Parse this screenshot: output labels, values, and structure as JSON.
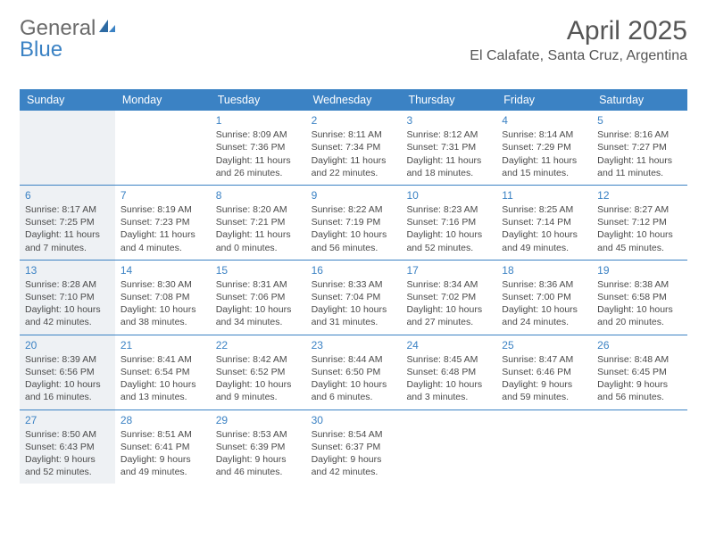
{
  "logo": {
    "text1": "General",
    "text2": "Blue"
  },
  "title": "April 2025",
  "location": "El Calafate, Santa Cruz, Argentina",
  "colors": {
    "header_bg": "#3b82c4",
    "header_text": "#ffffff",
    "day_num": "#3b82c4",
    "body_text": "#4a4a4a",
    "sunday_bg": "#eef1f4",
    "divider": "#3b82c4"
  },
  "weekdays": [
    "Sunday",
    "Monday",
    "Tuesday",
    "Wednesday",
    "Thursday",
    "Friday",
    "Saturday"
  ],
  "weeks": [
    [
      {
        "day": "",
        "sunday": true,
        "empty": true
      },
      {
        "day": "",
        "empty": true
      },
      {
        "day": "1",
        "sunrise": "Sunrise: 8:09 AM",
        "sunset": "Sunset: 7:36 PM",
        "daylight": "Daylight: 11 hours and 26 minutes."
      },
      {
        "day": "2",
        "sunrise": "Sunrise: 8:11 AM",
        "sunset": "Sunset: 7:34 PM",
        "daylight": "Daylight: 11 hours and 22 minutes."
      },
      {
        "day": "3",
        "sunrise": "Sunrise: 8:12 AM",
        "sunset": "Sunset: 7:31 PM",
        "daylight": "Daylight: 11 hours and 18 minutes."
      },
      {
        "day": "4",
        "sunrise": "Sunrise: 8:14 AM",
        "sunset": "Sunset: 7:29 PM",
        "daylight": "Daylight: 11 hours and 15 minutes."
      },
      {
        "day": "5",
        "sunrise": "Sunrise: 8:16 AM",
        "sunset": "Sunset: 7:27 PM",
        "daylight": "Daylight: 11 hours and 11 minutes."
      }
    ],
    [
      {
        "day": "6",
        "sunday": true,
        "sunrise": "Sunrise: 8:17 AM",
        "sunset": "Sunset: 7:25 PM",
        "daylight": "Daylight: 11 hours and 7 minutes."
      },
      {
        "day": "7",
        "sunrise": "Sunrise: 8:19 AM",
        "sunset": "Sunset: 7:23 PM",
        "daylight": "Daylight: 11 hours and 4 minutes."
      },
      {
        "day": "8",
        "sunrise": "Sunrise: 8:20 AM",
        "sunset": "Sunset: 7:21 PM",
        "daylight": "Daylight: 11 hours and 0 minutes."
      },
      {
        "day": "9",
        "sunrise": "Sunrise: 8:22 AM",
        "sunset": "Sunset: 7:19 PM",
        "daylight": "Daylight: 10 hours and 56 minutes."
      },
      {
        "day": "10",
        "sunrise": "Sunrise: 8:23 AM",
        "sunset": "Sunset: 7:16 PM",
        "daylight": "Daylight: 10 hours and 52 minutes."
      },
      {
        "day": "11",
        "sunrise": "Sunrise: 8:25 AM",
        "sunset": "Sunset: 7:14 PM",
        "daylight": "Daylight: 10 hours and 49 minutes."
      },
      {
        "day": "12",
        "sunrise": "Sunrise: 8:27 AM",
        "sunset": "Sunset: 7:12 PM",
        "daylight": "Daylight: 10 hours and 45 minutes."
      }
    ],
    [
      {
        "day": "13",
        "sunday": true,
        "sunrise": "Sunrise: 8:28 AM",
        "sunset": "Sunset: 7:10 PM",
        "daylight": "Daylight: 10 hours and 42 minutes."
      },
      {
        "day": "14",
        "sunrise": "Sunrise: 8:30 AM",
        "sunset": "Sunset: 7:08 PM",
        "daylight": "Daylight: 10 hours and 38 minutes."
      },
      {
        "day": "15",
        "sunrise": "Sunrise: 8:31 AM",
        "sunset": "Sunset: 7:06 PM",
        "daylight": "Daylight: 10 hours and 34 minutes."
      },
      {
        "day": "16",
        "sunrise": "Sunrise: 8:33 AM",
        "sunset": "Sunset: 7:04 PM",
        "daylight": "Daylight: 10 hours and 31 minutes."
      },
      {
        "day": "17",
        "sunrise": "Sunrise: 8:34 AM",
        "sunset": "Sunset: 7:02 PM",
        "daylight": "Daylight: 10 hours and 27 minutes."
      },
      {
        "day": "18",
        "sunrise": "Sunrise: 8:36 AM",
        "sunset": "Sunset: 7:00 PM",
        "daylight": "Daylight: 10 hours and 24 minutes."
      },
      {
        "day": "19",
        "sunrise": "Sunrise: 8:38 AM",
        "sunset": "Sunset: 6:58 PM",
        "daylight": "Daylight: 10 hours and 20 minutes."
      }
    ],
    [
      {
        "day": "20",
        "sunday": true,
        "sunrise": "Sunrise: 8:39 AM",
        "sunset": "Sunset: 6:56 PM",
        "daylight": "Daylight: 10 hours and 16 minutes."
      },
      {
        "day": "21",
        "sunrise": "Sunrise: 8:41 AM",
        "sunset": "Sunset: 6:54 PM",
        "daylight": "Daylight: 10 hours and 13 minutes."
      },
      {
        "day": "22",
        "sunrise": "Sunrise: 8:42 AM",
        "sunset": "Sunset: 6:52 PM",
        "daylight": "Daylight: 10 hours and 9 minutes."
      },
      {
        "day": "23",
        "sunrise": "Sunrise: 8:44 AM",
        "sunset": "Sunset: 6:50 PM",
        "daylight": "Daylight: 10 hours and 6 minutes."
      },
      {
        "day": "24",
        "sunrise": "Sunrise: 8:45 AM",
        "sunset": "Sunset: 6:48 PM",
        "daylight": "Daylight: 10 hours and 3 minutes."
      },
      {
        "day": "25",
        "sunrise": "Sunrise: 8:47 AM",
        "sunset": "Sunset: 6:46 PM",
        "daylight": "Daylight: 9 hours and 59 minutes."
      },
      {
        "day": "26",
        "sunrise": "Sunrise: 8:48 AM",
        "sunset": "Sunset: 6:45 PM",
        "daylight": "Daylight: 9 hours and 56 minutes."
      }
    ],
    [
      {
        "day": "27",
        "sunday": true,
        "sunrise": "Sunrise: 8:50 AM",
        "sunset": "Sunset: 6:43 PM",
        "daylight": "Daylight: 9 hours and 52 minutes."
      },
      {
        "day": "28",
        "sunrise": "Sunrise: 8:51 AM",
        "sunset": "Sunset: 6:41 PM",
        "daylight": "Daylight: 9 hours and 49 minutes."
      },
      {
        "day": "29",
        "sunrise": "Sunrise: 8:53 AM",
        "sunset": "Sunset: 6:39 PM",
        "daylight": "Daylight: 9 hours and 46 minutes."
      },
      {
        "day": "30",
        "sunrise": "Sunrise: 8:54 AM",
        "sunset": "Sunset: 6:37 PM",
        "daylight": "Daylight: 9 hours and 42 minutes."
      },
      {
        "day": "",
        "empty": true
      },
      {
        "day": "",
        "empty": true
      },
      {
        "day": "",
        "empty": true
      }
    ]
  ]
}
